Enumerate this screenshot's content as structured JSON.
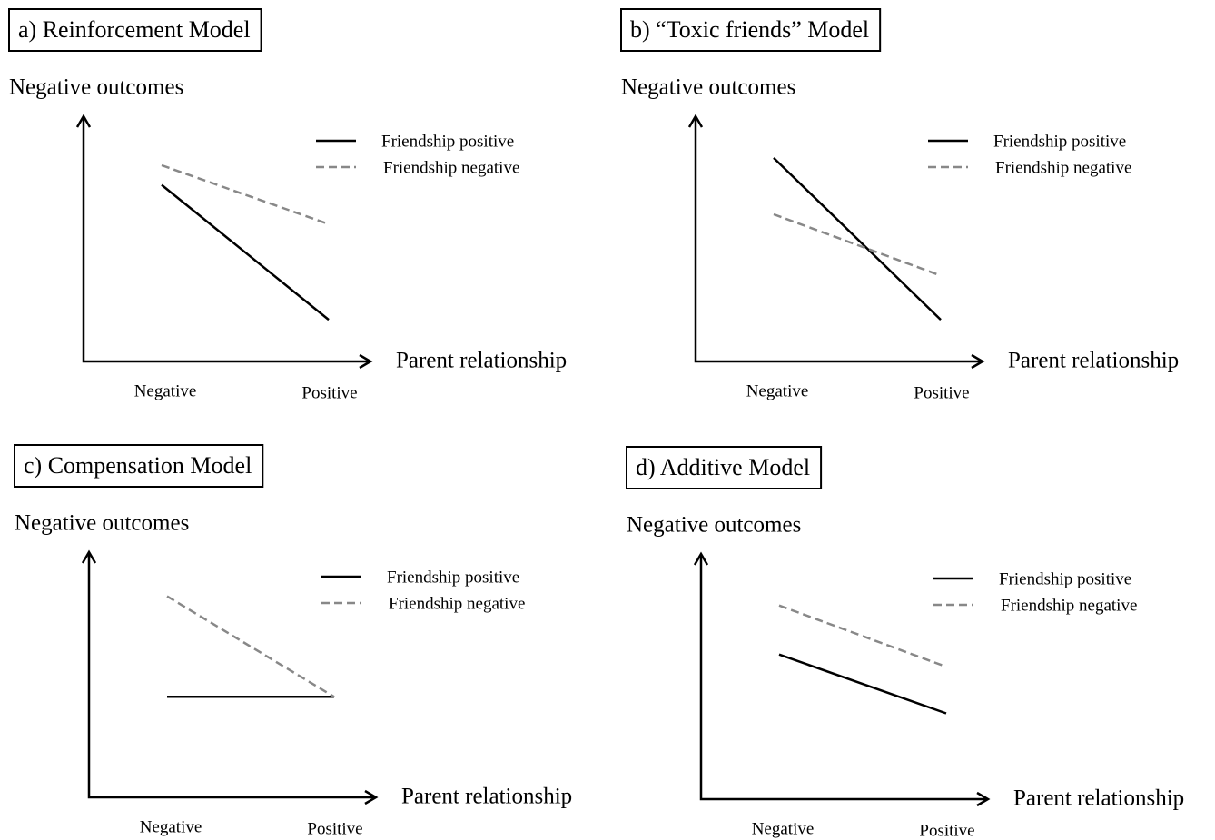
{
  "chart_data": [
    {
      "type": "line",
      "title": "a) Reinforcement Model",
      "y_label": "Negative outcomes",
      "x_label": "Parent relationship",
      "categories": [
        "Negative",
        "Positive"
      ],
      "ylim": [
        0,
        100
      ],
      "series": [
        {
          "name": "Friendship positive",
          "color": "#000000",
          "style": "solid",
          "values": [
            72,
            17
          ]
        },
        {
          "name": "Friendship negative",
          "color": "#888888",
          "style": "dashed",
          "values": [
            80,
            56
          ]
        }
      ]
    },
    {
      "type": "line",
      "title": "b) “Toxic friends” Model",
      "y_label": "Negative outcomes",
      "x_label": "Parent relationship",
      "categories": [
        "Negative",
        "Positive"
      ],
      "ylim": [
        0,
        100
      ],
      "series": [
        {
          "name": "Friendship positive",
          "color": "#000000",
          "style": "solid",
          "values": [
            83,
            17
          ]
        },
        {
          "name": "Friendship negative",
          "color": "#888888",
          "style": "dashed",
          "values": [
            60,
            35
          ]
        }
      ]
    },
    {
      "type": "line",
      "title": "c) Compensation Model",
      "y_label": "Negative outcomes",
      "x_label": "Parent relationship",
      "categories": [
        "Negative",
        "Positive"
      ],
      "ylim": [
        0,
        100
      ],
      "series": [
        {
          "name": "Friendship positive",
          "color": "#000000",
          "style": "solid",
          "values": [
            41,
            41
          ]
        },
        {
          "name": "Friendship negative",
          "color": "#888888",
          "style": "dashed",
          "values": [
            82,
            41
          ]
        }
      ]
    },
    {
      "type": "line",
      "title": "d) Additive Model",
      "y_label": "Negative outcomes",
      "x_label": "Parent relationship",
      "categories": [
        "Negative",
        "Positive"
      ],
      "ylim": [
        0,
        100
      ],
      "series": [
        {
          "name": "Friendship positive",
          "color": "#000000",
          "style": "solid",
          "values": [
            59,
            35
          ]
        },
        {
          "name": "Friendship negative",
          "color": "#888888",
          "style": "dashed",
          "values": [
            79,
            54
          ]
        }
      ]
    }
  ]
}
